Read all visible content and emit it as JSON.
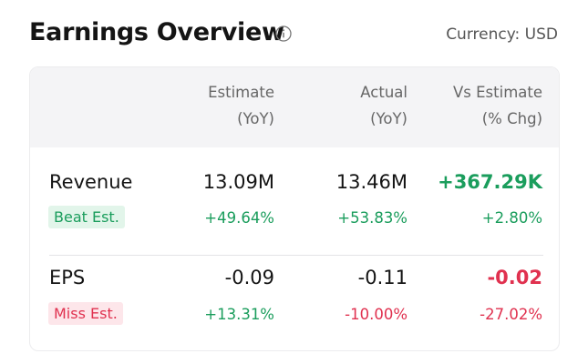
{
  "header": {
    "title": "Earnings Overview",
    "currency": "Currency: USD"
  },
  "table": {
    "columns": [
      [
        "Estimate",
        "(YoY)"
      ],
      [
        "Actual",
        "(YoY)"
      ],
      [
        "Vs Estimate",
        "(% Chg)"
      ]
    ],
    "rows": [
      {
        "name": "Revenue",
        "badge": "Beat Est.",
        "estimate": "13.09M",
        "estimate_change": "+49.64%",
        "actual": "13.46M",
        "actual_change": "+53.83%",
        "vs_estimate": "+367.29K",
        "vs_estimate_change": "+2.80%"
      },
      {
        "name": "EPS",
        "badge": "Miss Est.",
        "estimate": "-0.09",
        "estimate_change": "+13.31%",
        "actual": "-0.11",
        "actual_change": "-10.00%",
        "vs_estimate": "-0.02",
        "vs_estimate_change": "-27.02%"
      }
    ]
  }
}
